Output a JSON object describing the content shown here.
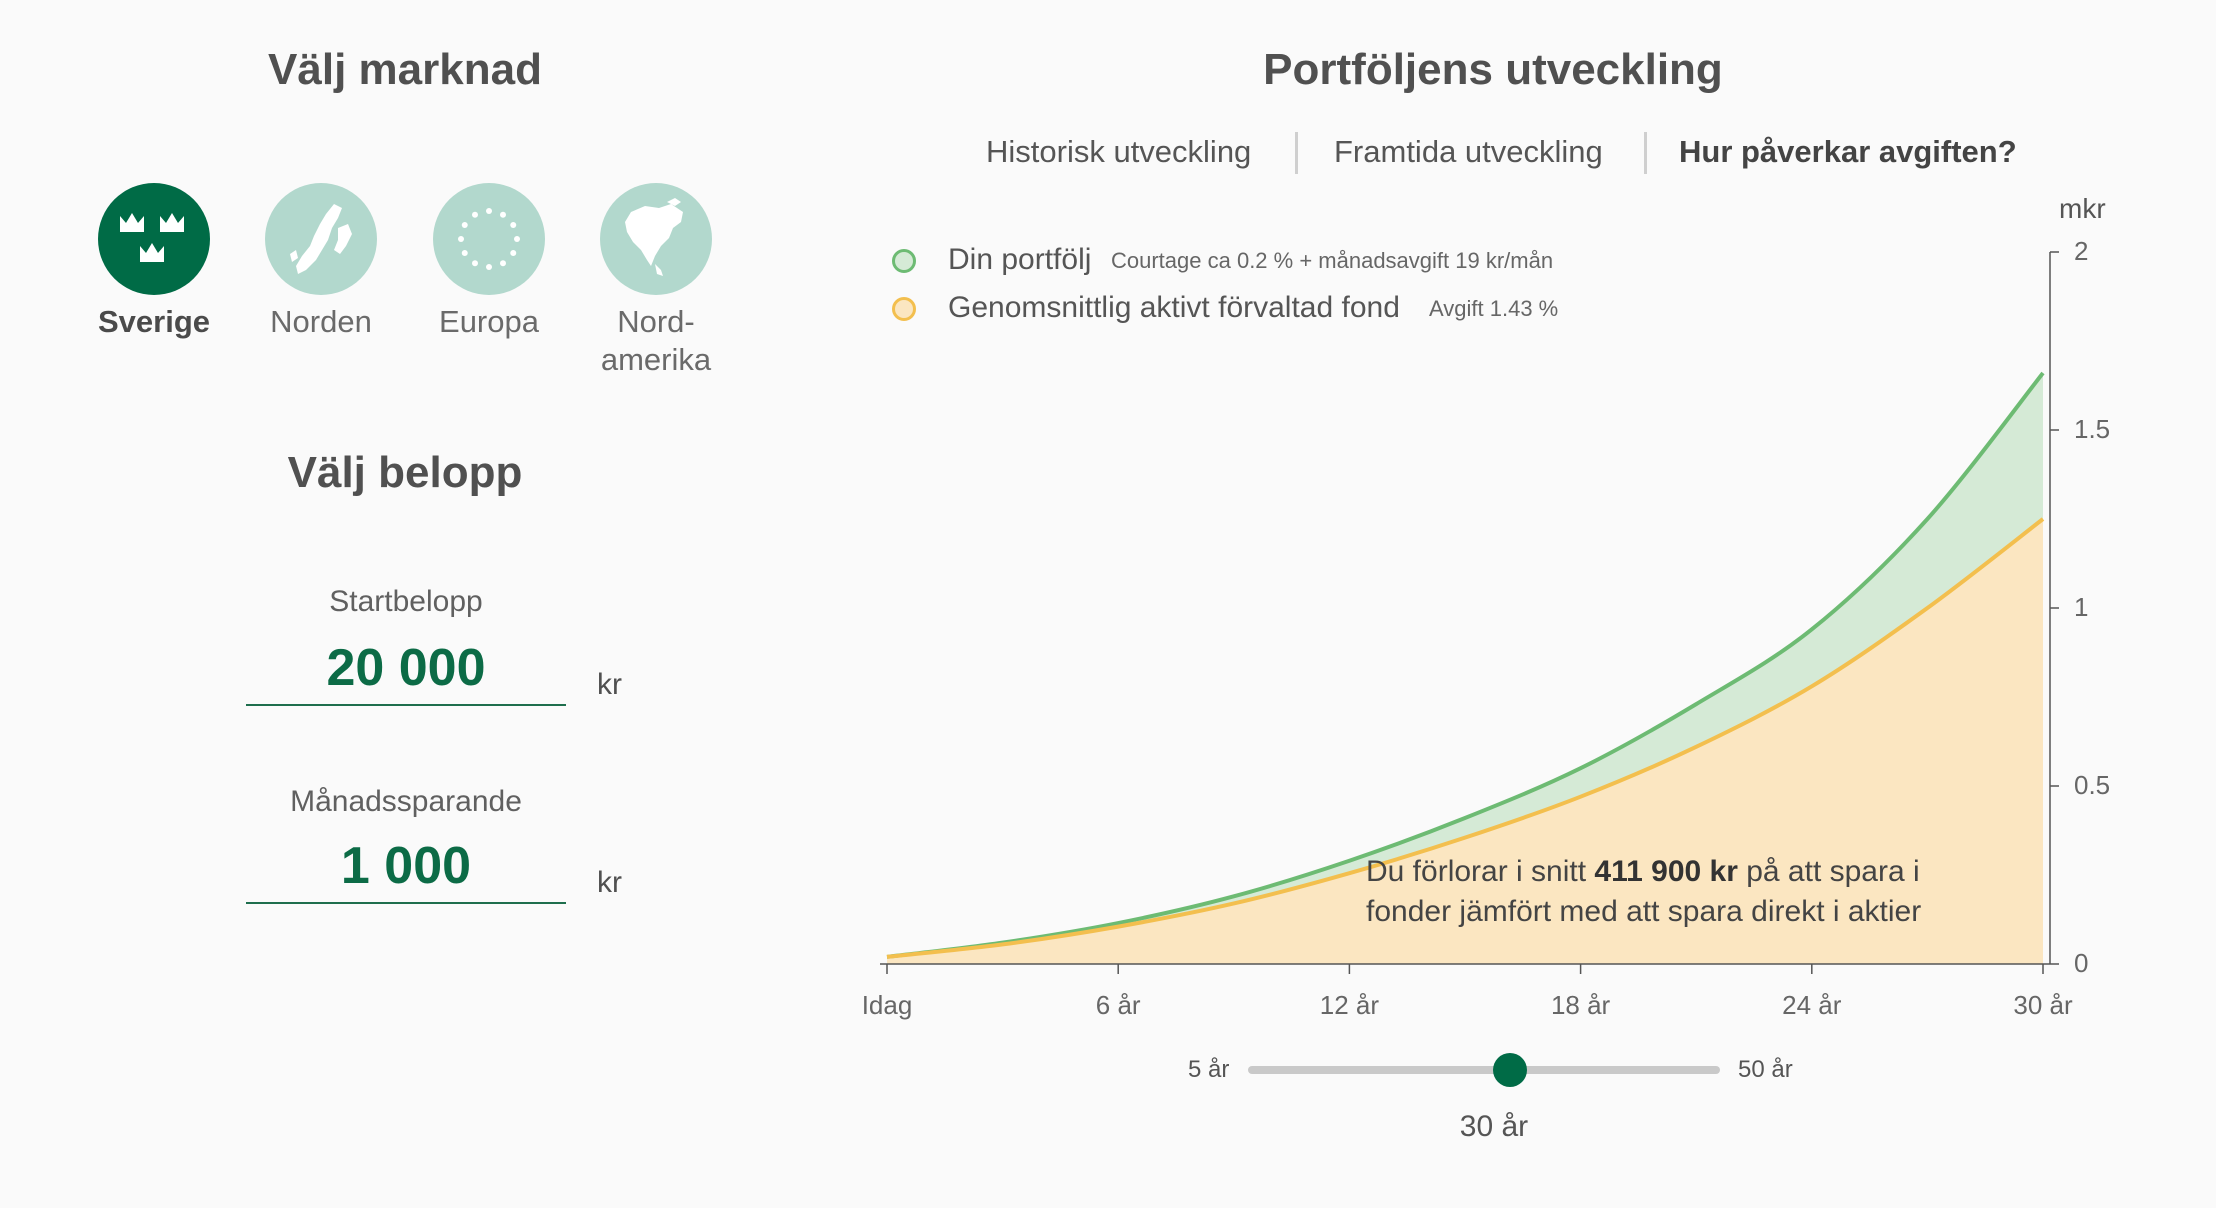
{
  "market": {
    "title": "Välj marknad",
    "items": [
      {
        "label": "Sverige",
        "icon": "three-crowns-icon",
        "active": true
      },
      {
        "label": "Norden",
        "icon": "nordic-map-icon",
        "active": false
      },
      {
        "label": "Europa",
        "icon": "eu-stars-icon",
        "active": false
      },
      {
        "label_line1": "Nord-",
        "label_line2": "amerika",
        "icon": "north-america-map-icon",
        "active": false
      }
    ]
  },
  "amount": {
    "title": "Välj belopp",
    "start_label": "Startbelopp",
    "start_value": "20 000",
    "monthly_label": "Månadssparande",
    "monthly_value": "1 000",
    "unit": "kr"
  },
  "chart_header": {
    "title": "Portföljens utveckling",
    "tabs": [
      "Historisk utveckling",
      "Framtida utveckling",
      "Hur påverkar avgiften?"
    ],
    "active_tab": 2
  },
  "legend": [
    {
      "name": "Din portfölj",
      "detail": "Courtage ca 0.2 % + månadsavgift 19 kr/mån",
      "color": "#6dbb73"
    },
    {
      "name": "Genomsnittlig aktivt förvaltad fond",
      "detail": "Avgift 1.43 %",
      "color": "#f3bf4e"
    }
  ],
  "chart_data": {
    "type": "area",
    "y_unit": "mkr",
    "y_ticks": [
      "0",
      "0.5",
      "1",
      "1.5",
      "2"
    ],
    "ylim": [
      0,
      2
    ],
    "x_ticks": [
      "Idag",
      "6 år",
      "12 år",
      "18 år",
      "24 år",
      "30 år"
    ],
    "xlim": [
      0,
      30
    ],
    "series": [
      {
        "name": "Din portfölj",
        "color": "#6dbb73",
        "fill": "#d5ead6",
        "x": [
          0,
          3,
          6,
          9,
          12,
          15,
          18,
          21,
          24,
          27,
          30
        ],
        "values": [
          0.02,
          0.06,
          0.115,
          0.19,
          0.29,
          0.41,
          0.55,
          0.73,
          0.94,
          1.25,
          1.66
        ]
      },
      {
        "name": "Genomsnittlig aktivt förvaltad fond",
        "color": "#f3bf4e",
        "fill": "#fbe6c1",
        "x": [
          0,
          3,
          6,
          9,
          12,
          15,
          18,
          21,
          24,
          27,
          30
        ],
        "values": [
          0.02,
          0.055,
          0.105,
          0.17,
          0.255,
          0.355,
          0.47,
          0.61,
          0.78,
          1.0,
          1.25
        ]
      }
    ],
    "annotation_pre": "Du förlorar i snitt ",
    "annotation_bold": "411 900 kr",
    "annotation_post1": " på att spara i",
    "annotation_line2": "fonder jämfört med att spara direkt i aktier"
  },
  "slider": {
    "min_label": "5 år",
    "max_label": "50 år",
    "min": 5,
    "max": 50,
    "value": 30,
    "value_label": "30 år"
  },
  "colors": {
    "brand_green": "#006b46",
    "light_green": "#b2d8cd"
  }
}
